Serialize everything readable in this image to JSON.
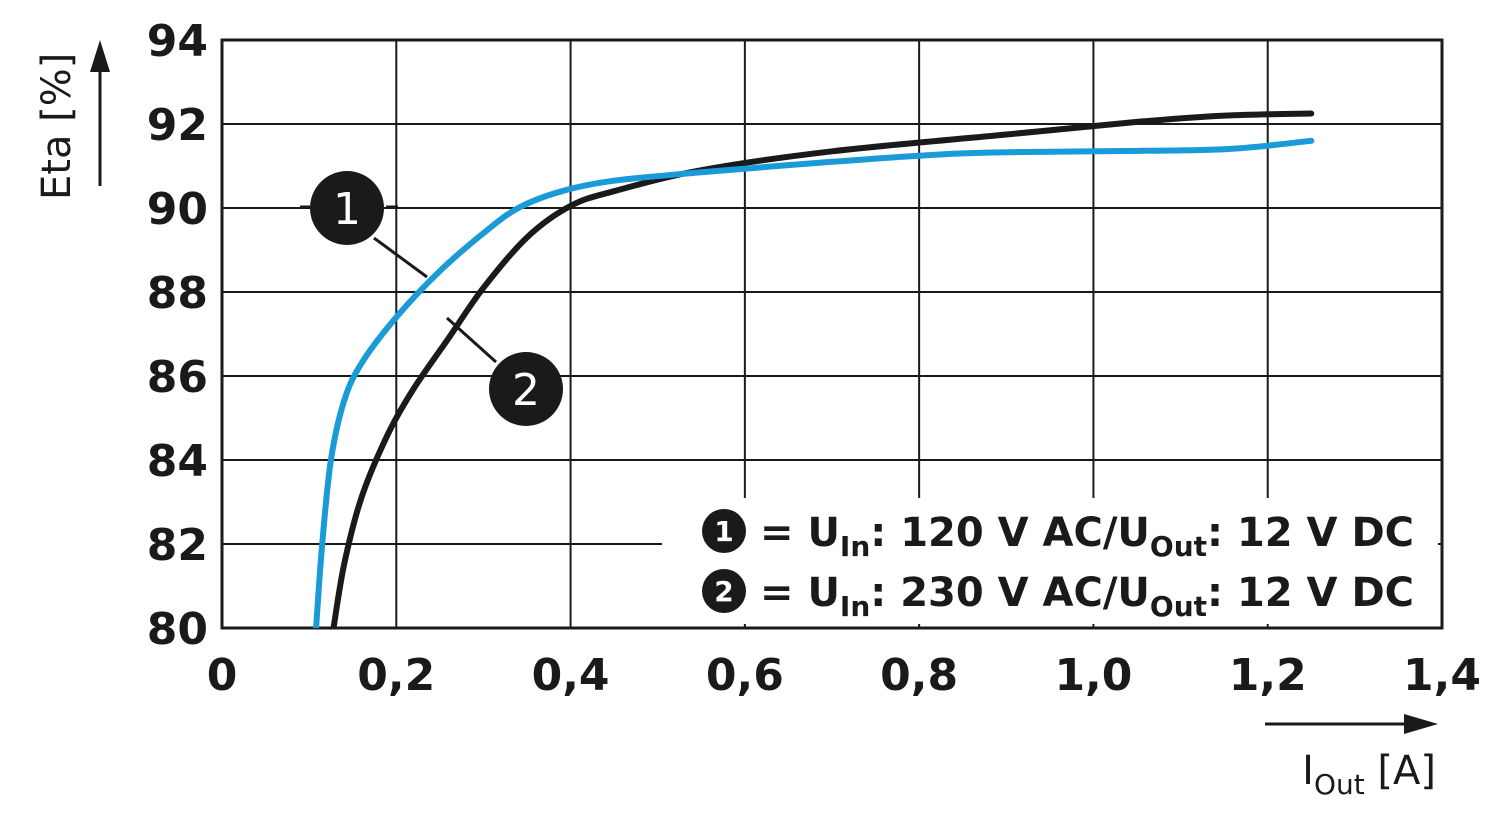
{
  "chart_data": {
    "type": "line",
    "title": "",
    "ylabel": "Eta [%]",
    "xlabel": {
      "main": "I",
      "sub": "Out",
      "unit": " [A]"
    },
    "xlim": [
      0,
      1.4
    ],
    "ylim": [
      80,
      94
    ],
    "x_ticks": [
      0,
      0.2,
      0.4,
      0.6,
      0.8,
      1.0,
      1.2,
      1.4
    ],
    "x_tick_labels": [
      "0",
      "0,2",
      "0,4",
      "0,6",
      "0,8",
      "1,0",
      "1,2",
      "1,4"
    ],
    "y_ticks": [
      80,
      82,
      84,
      86,
      88,
      90,
      92,
      94
    ],
    "y_tick_labels": [
      "80",
      "82",
      "84",
      "86",
      "88",
      "90",
      "92",
      "94"
    ],
    "grid": true,
    "series": [
      {
        "marker": "1",
        "color": "#1a9bd7",
        "x": [
          0.108,
          0.115,
          0.125,
          0.14,
          0.16,
          0.2,
          0.25,
          0.3,
          0.34,
          0.39,
          0.45,
          0.55,
          0.7,
          0.85,
          1.0,
          1.15,
          1.25
        ],
        "y": [
          80.0,
          82.0,
          84.0,
          85.4,
          86.3,
          87.4,
          88.5,
          89.4,
          90.0,
          90.4,
          90.65,
          90.85,
          91.1,
          91.3,
          91.35,
          91.4,
          91.6
        ]
      },
      {
        "marker": "2",
        "color": "#1a1a1a",
        "x": [
          0.128,
          0.14,
          0.16,
          0.19,
          0.22,
          0.26,
          0.3,
          0.35,
          0.4,
          0.45,
          0.55,
          0.7,
          0.9,
          1.05,
          1.15,
          1.25
        ],
        "y": [
          80.0,
          81.5,
          83.1,
          84.6,
          85.7,
          86.9,
          88.1,
          89.3,
          90.05,
          90.4,
          90.9,
          91.35,
          91.75,
          92.05,
          92.2,
          92.25
        ]
      }
    ],
    "legend": {
      "placement": "bottom-right",
      "entries": [
        {
          "marker": "1",
          "prefix": "= U",
          "sub1": "In",
          "middle": ": 120 V AC/U",
          "sub2": "Out",
          "suffix": ": 12 V DC"
        },
        {
          "marker": "2",
          "prefix": "= U",
          "sub1": "In",
          "middle": ": 230 V AC/U",
          "sub2": "Out",
          "suffix": ": 12 V DC"
        }
      ]
    }
  }
}
